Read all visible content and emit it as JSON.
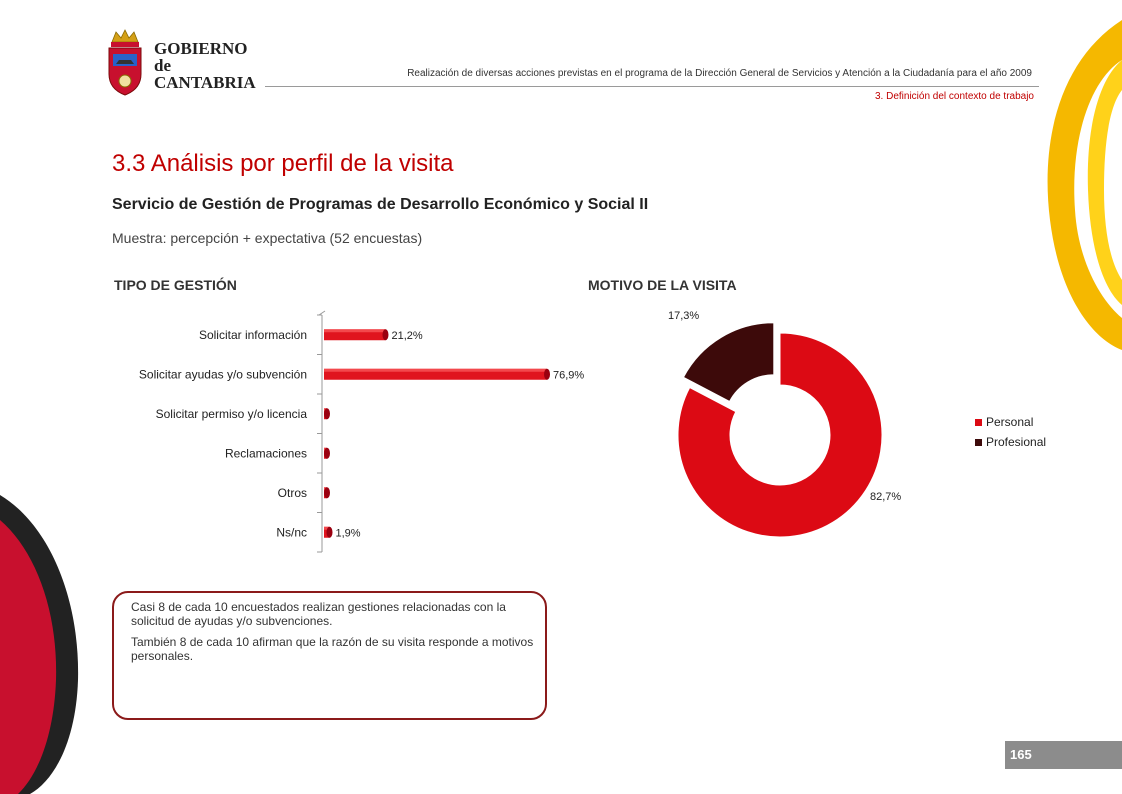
{
  "header": {
    "logo_lines": [
      "GOBIERNO",
      "de",
      "CANTABRIA"
    ],
    "subtitle": "Realización de diversas acciones previstas en el programa de la Dirección General de Servicios y Atención a la Ciudadanía para el año 2009",
    "section": "3. Definición del contexto de trabajo"
  },
  "main": {
    "title": "3.3 Análisis por perfil de la visita",
    "subtitle": "Servicio de Gestión de Programas de Desarrollo Económico y Social II",
    "sample": "Muestra: percepción + expectativa (52 encuestas)"
  },
  "chart_data": [
    {
      "type": "bar",
      "orientation": "horizontal",
      "title": "TIPO DE GESTIÓN",
      "categories": [
        "Solicitar información",
        "Solicitar ayudas y/o subvención",
        "Solicitar permiso y/o licencia",
        "Reclamaciones",
        "Otros",
        "Ns/nc"
      ],
      "values": [
        21.2,
        76.9,
        0,
        0,
        0,
        1.9
      ],
      "data_labels": [
        "21,2%",
        "76,9%",
        "",
        "",
        "",
        "1,9%"
      ],
      "xlim": [
        0,
        100
      ],
      "grid": false,
      "color": "#e0141e"
    },
    {
      "type": "pie",
      "variant": "doughnut",
      "title": "MOTIVO DE LA VISITA",
      "categories": [
        "Personal",
        "Profesional"
      ],
      "values": [
        82.7,
        17.3
      ],
      "data_labels": [
        "82,7%",
        "17,3%"
      ],
      "colors": [
        "#dc0a14",
        "#3d0a0a"
      ],
      "legend": "right"
    }
  ],
  "notes": [
    "Casi 8 de cada 10 encuestados realizan gestiones relacionadas con la solicitud de ayudas y/o subvenciones.",
    "También 8 de cada 10 afirman que la razón de su visita responde a motivos personales."
  ],
  "footer": {
    "page_number": "165"
  }
}
